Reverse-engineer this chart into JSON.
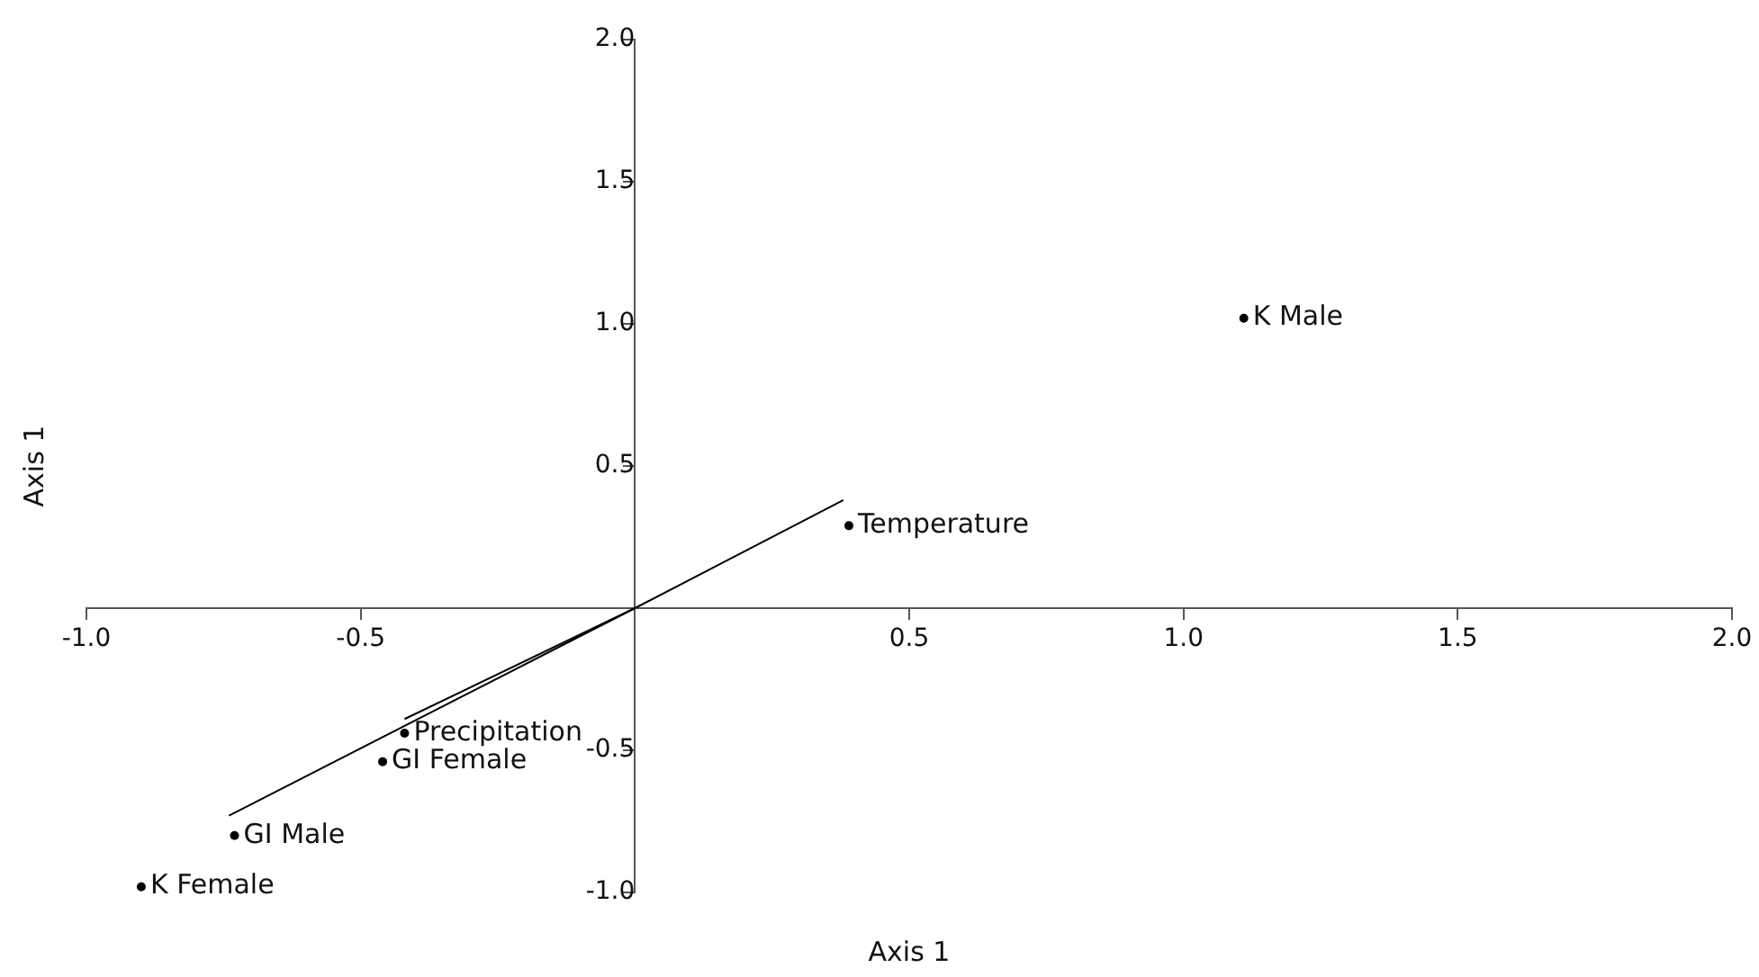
{
  "chart_data": {
    "type": "scatter",
    "xlabel": "Axis 1",
    "ylabel": "Axis 1",
    "xlim": [
      -1.0,
      2.0
    ],
    "ylim": [
      -1.0,
      2.0
    ],
    "xticks": [
      {
        "value": -1,
        "label": "-1.0"
      },
      {
        "value": -0.5,
        "label": "-0.5"
      },
      {
        "value": 0.5,
        "label": "0.5"
      },
      {
        "value": 1,
        "label": "1.0"
      },
      {
        "value": 1.5,
        "label": "1.5"
      },
      {
        "value": 2,
        "label": "2.0"
      }
    ],
    "yticks": [
      {
        "value": -1,
        "label": "-1.0"
      },
      {
        "value": -0.5,
        "label": "-0.5"
      },
      {
        "value": 0.5,
        "label": "0.5"
      },
      {
        "value": 1,
        "label": "1.0"
      },
      {
        "value": 1.5,
        "label": "1.5"
      },
      {
        "value": 2,
        "label": "2.0"
      }
    ],
    "grid": false,
    "legend": false,
    "line_style": "solid",
    "marker": "none",
    "series": [
      {
        "type": "line",
        "color": "#000000",
        "x": [
          -0.74,
          0,
          0.38
        ],
        "values": [
          -0.73,
          0,
          0.38
        ]
      },
      {
        "type": "line",
        "color": "#000000",
        "x": [
          0,
          -0.42
        ],
        "values": [
          0,
          -0.39
        ]
      },
      {
        "color": "#000000",
        "marker": "circle",
        "x": [
          1.11,
          0.39,
          -0.42,
          -0.46,
          -0.73,
          -0.9
        ],
        "values": [
          1.02,
          0.29,
          -0.44,
          -0.54,
          -0.8,
          -0.98
        ],
        "value_labels": [
          "K Male",
          "Temperature",
          "Precipitation",
          "GI Female",
          "GI Male",
          "K Female"
        ]
      }
    ]
  }
}
